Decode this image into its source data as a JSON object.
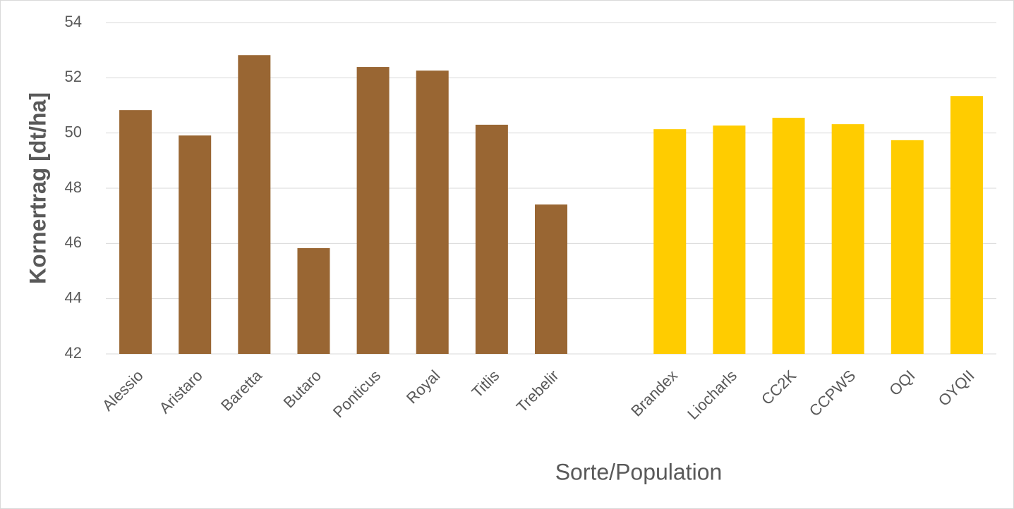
{
  "chart_data": {
    "type": "bar",
    "x_label": "Sorte/Population",
    "y_label": "Kornertrag [dt/ha]",
    "categories": [
      "Alessio",
      "Aristaro",
      "Baretta",
      "Butaro",
      "Ponticus",
      "Royal",
      "Titlis",
      "Trebelir",
      null,
      "Brandex",
      "Liocharls",
      "CC2K",
      "CCPWS",
      "OQI",
      "OYQII"
    ],
    "values": [
      50.83,
      49.91,
      52.82,
      45.83,
      52.39,
      52.26,
      50.3,
      47.41,
      null,
      50.14,
      50.27,
      50.55,
      50.32,
      49.74,
      51.34
    ],
    "colors": [
      "#996633",
      "#996633",
      "#996633",
      "#996633",
      "#996633",
      "#996633",
      "#996633",
      "#996633",
      null,
      "#ffcc00",
      "#ffcc00",
      "#ffcc00",
      "#ffcc00",
      "#ffcc00",
      "#ffcc00"
    ],
    "ylim": [
      42,
      54
    ],
    "yticks": [
      42,
      44,
      46,
      48,
      50,
      52,
      54
    ],
    "grid": true
  }
}
